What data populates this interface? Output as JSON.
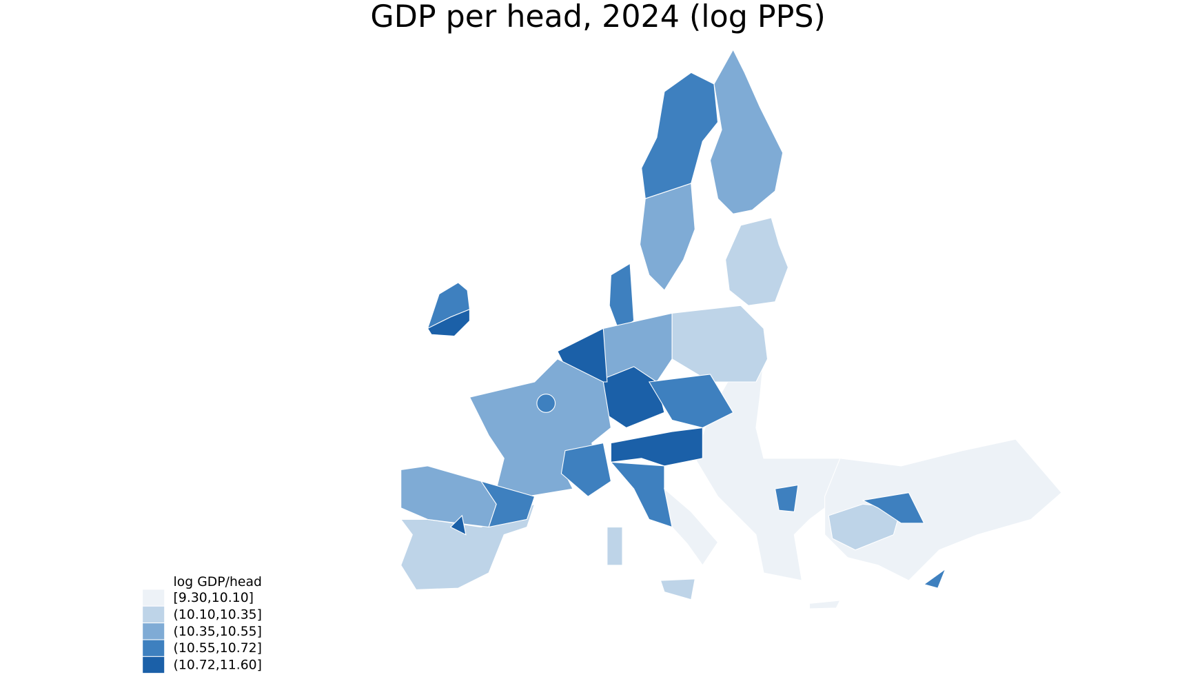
{
  "title": "GDP per head, 2024 (log PPS)",
  "legend": {
    "title": "log GDP/head",
    "items": [
      {
        "label": "[9.30,10.10]",
        "color": "#edf2f7"
      },
      {
        "label": "(10.10,10.35]",
        "color": "#bed4e8"
      },
      {
        "label": "(10.35,10.55]",
        "color": "#7fabd5"
      },
      {
        "label": "(10.55,10.72]",
        "color": "#3e80bf"
      },
      {
        "label": "(10.72,11.60]",
        "color": "#1b60a8"
      }
    ]
  }
}
